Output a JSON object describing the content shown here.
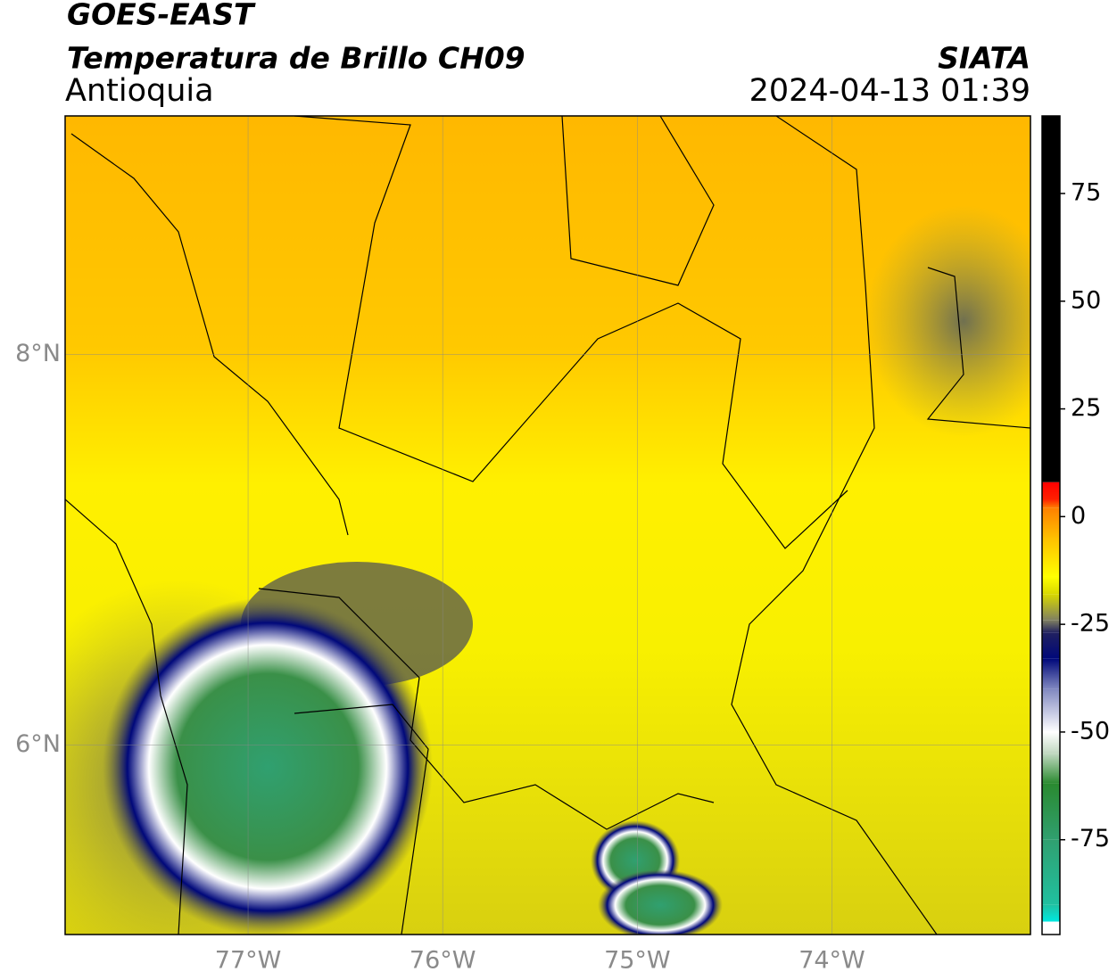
{
  "header": {
    "title": "GOES-EAST",
    "subtitle": "Temperatura de Brillo CH09",
    "region": "Antioquia",
    "source": "SIATA",
    "datetime": "2024-04-13 01:39"
  },
  "map": {
    "xlim": [
      -77.94,
      -72.98
    ],
    "ylim": [
      5.03,
      9.22
    ],
    "xticks": [
      {
        "value": -77,
        "label": "77°W"
      },
      {
        "value": -76,
        "label": "76°W"
      },
      {
        "value": -75,
        "label": "75°W"
      },
      {
        "value": -74,
        "label": "74°W"
      }
    ],
    "yticks": [
      {
        "value": 6,
        "label": "6°N"
      },
      {
        "value": 8,
        "label": "8°N"
      }
    ],
    "grid": true
  },
  "colorbar": {
    "lim": [
      -97,
      93
    ],
    "ticks": [
      -75,
      -50,
      -25,
      0,
      25,
      50,
      75
    ],
    "stops": [
      {
        "value": -97,
        "color": "#ffffff"
      },
      {
        "value": -94,
        "color": "#ffffff"
      },
      {
        "value": -94,
        "color": "#00e8e0"
      },
      {
        "value": -90,
        "color": "#20c0a0"
      },
      {
        "value": -75,
        "color": "#30a070"
      },
      {
        "value": -62,
        "color": "#2a8a30"
      },
      {
        "value": -55,
        "color": "#c0d8c0"
      },
      {
        "value": -50,
        "color": "#ffffff"
      },
      {
        "value": -40,
        "color": "#8088c0"
      },
      {
        "value": -33,
        "color": "#00087a"
      },
      {
        "value": -27,
        "color": "#202060"
      },
      {
        "value": -24,
        "color": "#808060"
      },
      {
        "value": -18,
        "color": "#d8d800"
      },
      {
        "value": -14,
        "color": "#ffff00"
      },
      {
        "value": -5,
        "color": "#ffc000"
      },
      {
        "value": 2,
        "color": "#ff8000"
      },
      {
        "value": 4,
        "color": "#ff2000"
      },
      {
        "value": 8,
        "color": "#ff0000"
      },
      {
        "value": 8,
        "color": "#000000"
      },
      {
        "value": 93,
        "color": "#000000"
      }
    ]
  }
}
